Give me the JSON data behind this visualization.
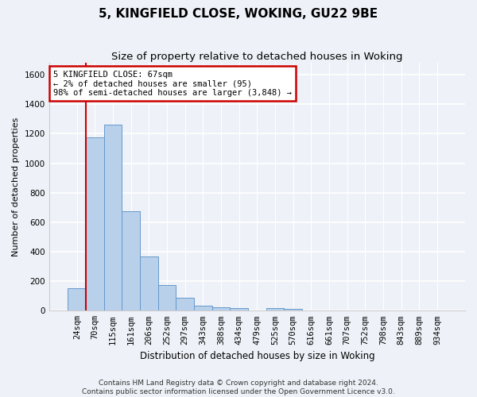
{
  "title": "5, KINGFIELD CLOSE, WOKING, GU22 9BE",
  "subtitle": "Size of property relative to detached houses in Woking",
  "xlabel": "Distribution of detached houses by size in Woking",
  "ylabel": "Number of detached properties",
  "categories": [
    "24sqm",
    "70sqm",
    "115sqm",
    "161sqm",
    "206sqm",
    "252sqm",
    "297sqm",
    "343sqm",
    "388sqm",
    "434sqm",
    "479sqm",
    "525sqm",
    "570sqm",
    "616sqm",
    "661sqm",
    "707sqm",
    "752sqm",
    "798sqm",
    "843sqm",
    "889sqm",
    "934sqm"
  ],
  "values": [
    150,
    1175,
    1260,
    675,
    370,
    175,
    90,
    35,
    25,
    20,
    0,
    20,
    15,
    0,
    0,
    0,
    0,
    0,
    0,
    0,
    0
  ],
  "bar_color": "#b8d0ea",
  "bar_edge_color": "#6699cc",
  "highlight_bar_index": 0,
  "highlight_color": "#cc0000",
  "annotation_text": "5 KINGFIELD CLOSE: 67sqm\n← 2% of detached houses are smaller (95)\n98% of semi-detached houses are larger (3,848) →",
  "annotation_box_color": "#ffffff",
  "annotation_box_edge_color": "#cc0000",
  "vline_x": 1,
  "ylim": [
    0,
    1680
  ],
  "yticks": [
    0,
    200,
    400,
    600,
    800,
    1000,
    1200,
    1400,
    1600
  ],
  "background_color": "#eef2f8",
  "grid_color": "#ffffff",
  "footer": "Contains HM Land Registry data © Crown copyright and database right 2024.\nContains public sector information licensed under the Open Government Licence v3.0.",
  "title_fontsize": 11,
  "subtitle_fontsize": 9.5,
  "xlabel_fontsize": 8.5,
  "ylabel_fontsize": 8,
  "tick_fontsize": 7.5,
  "annotation_fontsize": 7.5,
  "footer_fontsize": 6.5
}
